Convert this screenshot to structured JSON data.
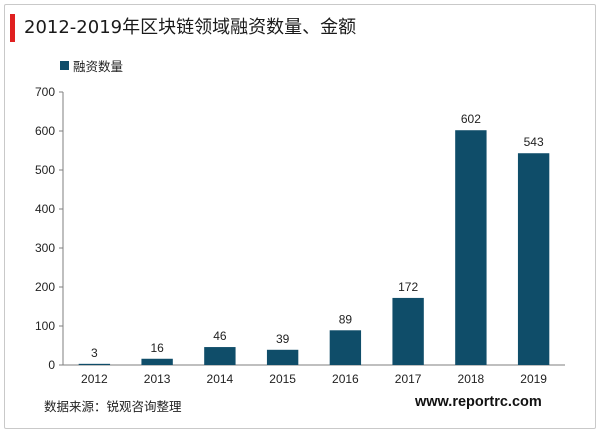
{
  "title": "2012-2019年区块链领域融资数量、金额",
  "legend": {
    "label": "融资数量"
  },
  "source": "数据来源：锐观咨询整理",
  "website": "www.reportrc.com",
  "colors": {
    "bar": "#0f4d69",
    "accent": "#e02020",
    "axis": "#7f7f7f"
  },
  "chart_data": {
    "type": "bar",
    "title": "2012-2019年区块链领域融资数量、金额",
    "categories": [
      "2012",
      "2013",
      "2014",
      "2015",
      "2016",
      "2017",
      "2018",
      "2019"
    ],
    "series": [
      {
        "name": "融资数量",
        "values": [
          3,
          16,
          46,
          39,
          89,
          172,
          602,
          543
        ]
      }
    ],
    "ylim": [
      0,
      700
    ],
    "yticks": [
      0,
      100,
      200,
      300,
      400,
      500,
      600,
      700
    ],
    "grid": false,
    "legend_position": "top-left",
    "data_labels": true
  }
}
